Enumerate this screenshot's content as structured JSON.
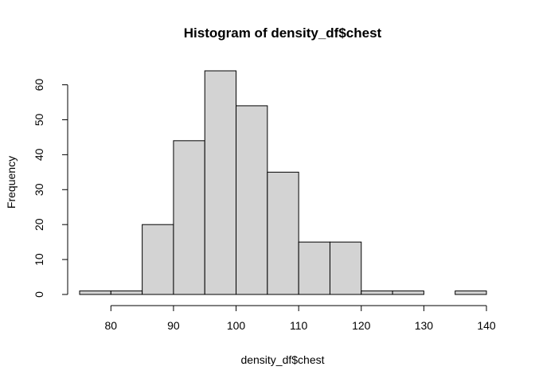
{
  "chart_data": {
    "type": "bar",
    "title": "Histogram of density_df$chest",
    "xlabel": "density_df$chest",
    "ylabel": "Frequency",
    "bins": [
      {
        "start": 75,
        "end": 80,
        "count": 1
      },
      {
        "start": 80,
        "end": 85,
        "count": 1
      },
      {
        "start": 85,
        "end": 90,
        "count": 20
      },
      {
        "start": 90,
        "end": 95,
        "count": 44
      },
      {
        "start": 95,
        "end": 100,
        "count": 64
      },
      {
        "start": 100,
        "end": 105,
        "count": 54
      },
      {
        "start": 105,
        "end": 110,
        "count": 35
      },
      {
        "start": 110,
        "end": 115,
        "count": 15
      },
      {
        "start": 115,
        "end": 120,
        "count": 15
      },
      {
        "start": 120,
        "end": 125,
        "count": 1
      },
      {
        "start": 125,
        "end": 130,
        "count": 1
      },
      {
        "start": 130,
        "end": 135,
        "count": 0
      },
      {
        "start": 135,
        "end": 140,
        "count": 1
      }
    ],
    "xlim": [
      75,
      140
    ],
    "ylim": [
      0,
      64
    ],
    "x_ticks": [
      "80",
      "90",
      "100",
      "110",
      "120",
      "130",
      "140"
    ],
    "y_ticks": [
      "0",
      "10",
      "20",
      "30",
      "40",
      "50",
      "60"
    ],
    "grid": false,
    "legend": "none"
  }
}
